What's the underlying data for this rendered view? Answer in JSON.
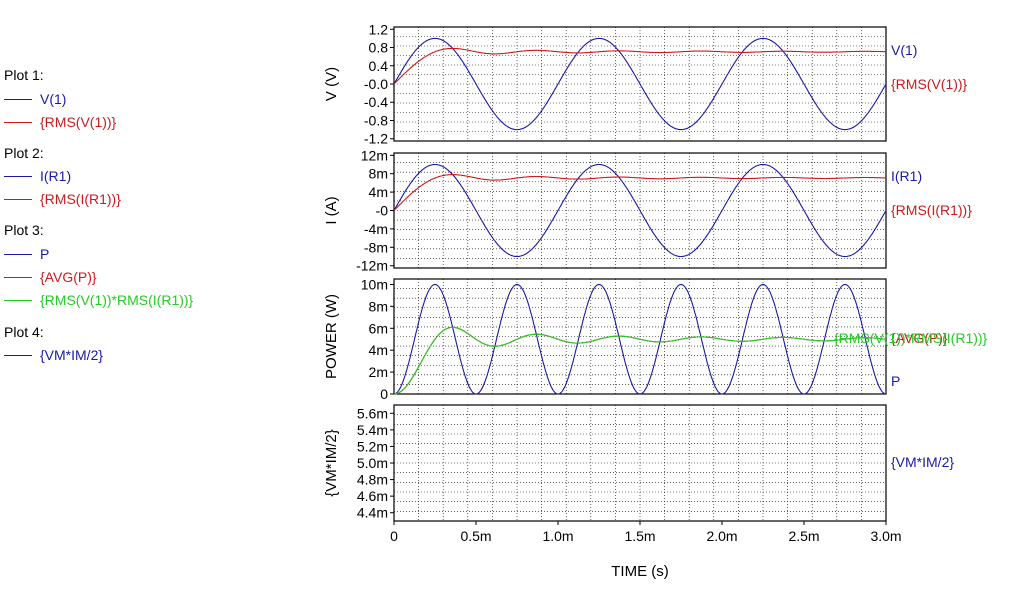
{
  "legend": [
    {
      "title": "Plot 1:",
      "items": [
        {
          "label": "V(1)",
          "color": "#1a1aa8"
        },
        {
          "label": "{RMS(V(1))}",
          "color": "#cc1a1a"
        }
      ]
    },
    {
      "title": "Plot 2:",
      "items": [
        {
          "label": "I(R1)",
          "color": "#1a1aa8"
        },
        {
          "label": "{RMS(I(R1))}",
          "color": "#cc1a1a"
        }
      ]
    },
    {
      "title": "Plot 3:",
      "items": [
        {
          "label": "P",
          "color": "#1a1aa8"
        },
        {
          "label": "{AVG(P)}",
          "color": "#cc1a1a"
        },
        {
          "label": "{RMS(V(1))*RMS(I(R1))}",
          "color": "#22cc22"
        }
      ]
    },
    {
      "title": "Plot 4:",
      "items": [
        {
          "label": "{VM*IM/2}",
          "color": "#1a1aa8"
        }
      ]
    }
  ],
  "chart_data": [
    {
      "type": "line",
      "ylabel": "V (V)",
      "ylim": [
        -1.25,
        1.25
      ],
      "yticks": [
        1.2,
        0.8,
        0.4,
        0.0,
        -0.4,
        -0.8,
        -1.2
      ],
      "yticklabels": [
        "1.2",
        "0.8",
        "0.4",
        "-0.0",
        "-0.4",
        "-0.8",
        "-1.2"
      ],
      "series": [
        {
          "name": "V(1)",
          "color": "#1a1aa8",
          "kind": "sine",
          "amplitude": 1.0,
          "frequency_hz": 1000
        },
        {
          "name": "{RMS(V(1))}",
          "color": "#cc1a1a",
          "kind": "rms",
          "amplitude": 1.0,
          "frequency_hz": 1000
        }
      ]
    },
    {
      "type": "line",
      "ylabel": "I (A)",
      "ylim": [
        -0.0125,
        0.0125
      ],
      "yticks": [
        0.012,
        0.008,
        0.004,
        0.0,
        -0.004,
        -0.008,
        -0.012
      ],
      "yticklabels": [
        "12m",
        "8m",
        "4m",
        "-0",
        "-4m",
        "-8m",
        "-12m"
      ],
      "series": [
        {
          "name": "I(R1)",
          "color": "#1a1aa8",
          "kind": "sine",
          "amplitude": 0.01,
          "frequency_hz": 1000
        },
        {
          "name": "{RMS(I(R1))}",
          "color": "#cc1a1a",
          "kind": "rms",
          "amplitude": 0.01,
          "frequency_hz": 1000
        }
      ]
    },
    {
      "type": "line",
      "ylabel": "POWER (W)",
      "ylim": [
        0,
        0.0105
      ],
      "yticks": [
        0.01,
        0.008,
        0.006,
        0.004,
        0.002,
        0
      ],
      "yticklabels": [
        "10m",
        "8m",
        "6m",
        "4m",
        "2m",
        "0"
      ],
      "series": [
        {
          "name": "P",
          "color": "#1a1aa8",
          "kind": "sin2",
          "amplitude": 0.01,
          "frequency_hz": 1000
        },
        {
          "name": "{AVG(P)}",
          "color": "#cc1a1a",
          "kind": "avg",
          "amplitude": 0.01,
          "frequency_hz": 1000
        },
        {
          "name": "{RMS(V(1))*RMS(I(R1))}",
          "color": "#22cc22",
          "kind": "rmsprod",
          "amplitude": 0.01,
          "frequency_hz": 1000
        }
      ]
    },
    {
      "type": "line",
      "ylabel": "{VM*IM/2}",
      "ylim": [
        0.0043,
        0.0057
      ],
      "yticks": [
        0.0056,
        0.0054,
        0.0052,
        0.005,
        0.0048,
        0.0046,
        0.0044
      ],
      "yticklabels": [
        "5.6m",
        "5.4m",
        "5.2m",
        "5.0m",
        "4.8m",
        "4.6m",
        "4.4m"
      ],
      "series": [
        {
          "name": "{VM*IM/2}",
          "color": "#1a1aa8",
          "kind": "none",
          "amplitude": 0.005,
          "frequency_hz": 1000
        }
      ]
    }
  ],
  "x_axis": {
    "xlim": [
      0,
      0.003
    ],
    "ticks": [
      0,
      0.0005,
      0.001,
      0.0015,
      0.002,
      0.0025,
      0.003
    ],
    "ticklabels": [
      "0",
      "0.5m",
      "1.0m",
      "1.5m",
      "2.0m",
      "2.5m",
      "3.0m"
    ],
    "label": "TIME  (s)"
  },
  "grid": true
}
